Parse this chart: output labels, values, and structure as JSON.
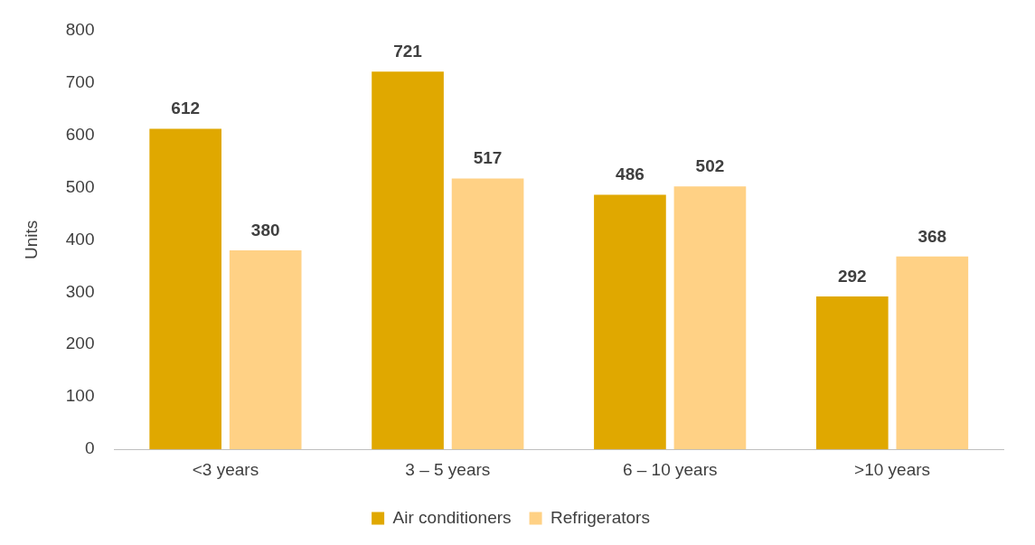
{
  "chart_data": {
    "type": "bar",
    "ylabel": "Units",
    "categories": [
      "<3 years",
      "3 – 5 years",
      "6 – 10 years",
      ">10 years"
    ],
    "series": [
      {
        "name": "Air conditioners",
        "color": "#e0a800",
        "values": [
          612,
          721,
          486,
          292
        ]
      },
      {
        "name": "Refrigerators",
        "color": "#ffd185",
        "values": [
          380,
          517,
          502,
          368
        ]
      }
    ],
    "ylim": [
      0,
      800
    ],
    "yticks": [
      0,
      100,
      200,
      300,
      400,
      500,
      600,
      700,
      800
    ],
    "grid": false,
    "legend": "bottom",
    "data_labels": true
  }
}
